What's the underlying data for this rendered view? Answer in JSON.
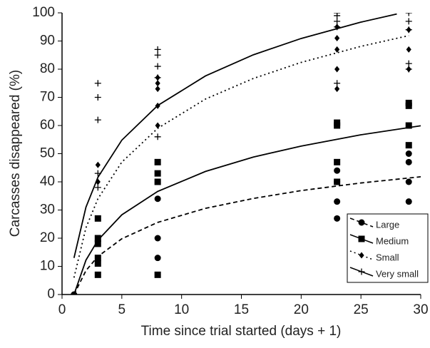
{
  "chart_data": {
    "type": "scatter",
    "x_label": "Time since trial started (days + 1)",
    "y_label": "Carcasses disappeared (%)",
    "xlim": [
      0,
      30
    ],
    "xticks": [
      0,
      5,
      10,
      15,
      20,
      25,
      30
    ],
    "ylim": [
      0,
      100
    ],
    "yticks": [
      0,
      10,
      20,
      30,
      40,
      50,
      60,
      70,
      80,
      90,
      100
    ],
    "legend": "lower right",
    "series": [
      {
        "name": "Large",
        "color": "#000000",
        "marker": "circle",
        "line_style": "dashed",
        "x": [
          1,
          3,
          8,
          8,
          8,
          23,
          23,
          23,
          23,
          29,
          29,
          29,
          29
        ],
        "values": [
          0,
          19,
          34,
          20,
          13,
          44,
          40,
          33,
          27,
          50,
          47,
          40,
          33
        ],
        "fit": {
          "x": [
            1,
            2,
            3,
            5,
            8,
            12,
            16,
            20,
            25,
            30
          ],
          "values": [
            0,
            8.5,
            13.5,
            19.8,
            25.6,
            30.6,
            34.1,
            36.9,
            39.6,
            41.8
          ]
        }
      },
      {
        "name": "Medium",
        "color": "#000000",
        "marker": "square",
        "line_style": "solid",
        "x": [
          3,
          3,
          3,
          3,
          3,
          3,
          8,
          8,
          8,
          8,
          23,
          23,
          23,
          23,
          29,
          29,
          29,
          29
        ],
        "values": [
          27,
          20,
          18,
          13,
          11,
          7,
          47,
          43,
          40,
          7,
          61,
          60,
          47,
          40,
          68,
          67,
          60,
          53
        ],
        "fit": {
          "x": [
            1,
            2,
            3,
            5,
            8,
            12,
            16,
            20,
            25,
            30
          ],
          "values": [
            0,
            12.2,
            19.3,
            28.3,
            36.6,
            43.7,
            48.8,
            52.7,
            56.7,
            59.9
          ]
        }
      },
      {
        "name": "Small",
        "color": "#000000",
        "marker": "diamond",
        "line_style": "dotted",
        "x": [
          3,
          3,
          8,
          8,
          8,
          8,
          8,
          23,
          23,
          23,
          23,
          23,
          29,
          29,
          29
        ],
        "values": [
          46,
          40,
          77,
          75,
          73,
          67,
          60,
          95,
          91,
          87,
          80,
          73,
          94,
          87,
          80
        ],
        "fit": {
          "x": [
            1,
            2,
            3,
            5,
            8,
            12,
            16,
            20,
            25,
            29
          ],
          "values": [
            6,
            23.7,
            34,
            47,
            59,
            69.4,
            76.7,
            82.4,
            88.1,
            91.9
          ]
        }
      },
      {
        "name": "Very small",
        "color": "#000000",
        "marker": "plus",
        "line_style": "solid",
        "x": [
          3,
          3,
          3,
          3,
          3,
          8,
          8,
          8,
          8,
          8,
          23,
          23,
          23,
          23,
          23,
          29,
          29,
          29,
          29,
          29
        ],
        "values": [
          75,
          70,
          62,
          43,
          38,
          87,
          85,
          81,
          77,
          56,
          100,
          99,
          97,
          95,
          75,
          100,
          97,
          94,
          82,
          80
        ],
        "fit": {
          "x": [
            1,
            2,
            3,
            5,
            8,
            12,
            16,
            20,
            25,
            28
          ],
          "values": [
            13,
            31,
            41.6,
            54.8,
            67.1,
            77.6,
            85.1,
            90.9,
            96.7,
            99.6
          ]
        }
      }
    ]
  }
}
